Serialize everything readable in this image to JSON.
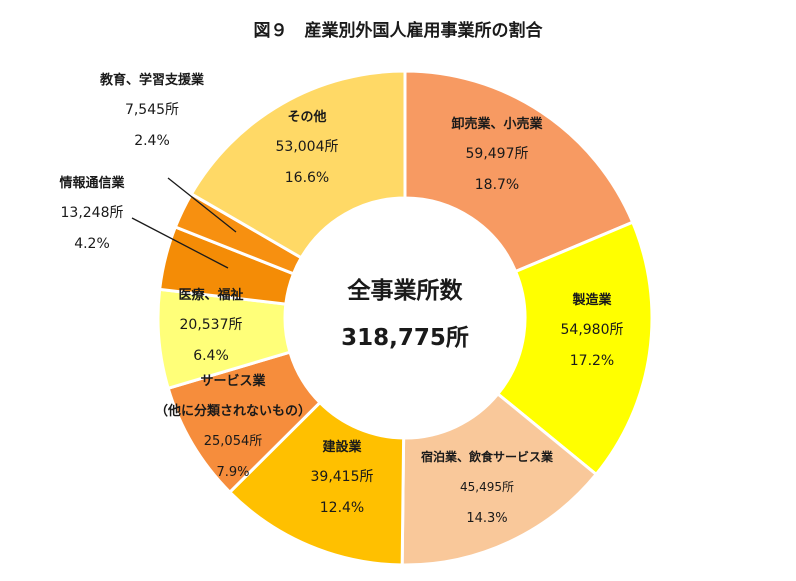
{
  "chart_data": {
    "type": "pie",
    "title": "図９　産業別外国人雇用事業所の割合",
    "center": {
      "label": "全事業所数",
      "total": "318,775所"
    },
    "slices": [
      {
        "name": "卸売業、小売業",
        "value": 59497,
        "value_label": "59,497所",
        "pct": "18.7%",
        "color": "#F79A62"
      },
      {
        "name": "製造業",
        "value": 54980,
        "value_label": "54,980所",
        "pct": "17.2%",
        "color": "#FFFF00"
      },
      {
        "name": "宿泊業、飲食サービス業",
        "value": 45495,
        "value_label": "45,495所",
        "pct": "14.3%",
        "color": "#F9C89A"
      },
      {
        "name": "建設業",
        "value": 39415,
        "value_label": "39,415所",
        "pct": "12.4%",
        "color": "#FFC000"
      },
      {
        "name": "サービス業\n（他に分類されないもの）",
        "value": 25054,
        "value_label": "25,054所",
        "pct": "7.9%",
        "color": "#F68D3C"
      },
      {
        "name": "医療、福祉",
        "value": 20537,
        "value_label": "20,537所",
        "pct": "6.4%",
        "color": "#FFFF79"
      },
      {
        "name": "情報通信業",
        "value": 13248,
        "value_label": "13,248所",
        "pct": "4.2%",
        "color": "#F48C06"
      },
      {
        "name": "教育、学習支援業",
        "value": 7545,
        "value_label": "7,545所",
        "pct": "2.4%",
        "color": "#F79010"
      },
      {
        "name": "その他",
        "value": 53004,
        "value_label": "53,004所",
        "pct": "16.6%",
        "color": "#FFD966"
      }
    ]
  }
}
